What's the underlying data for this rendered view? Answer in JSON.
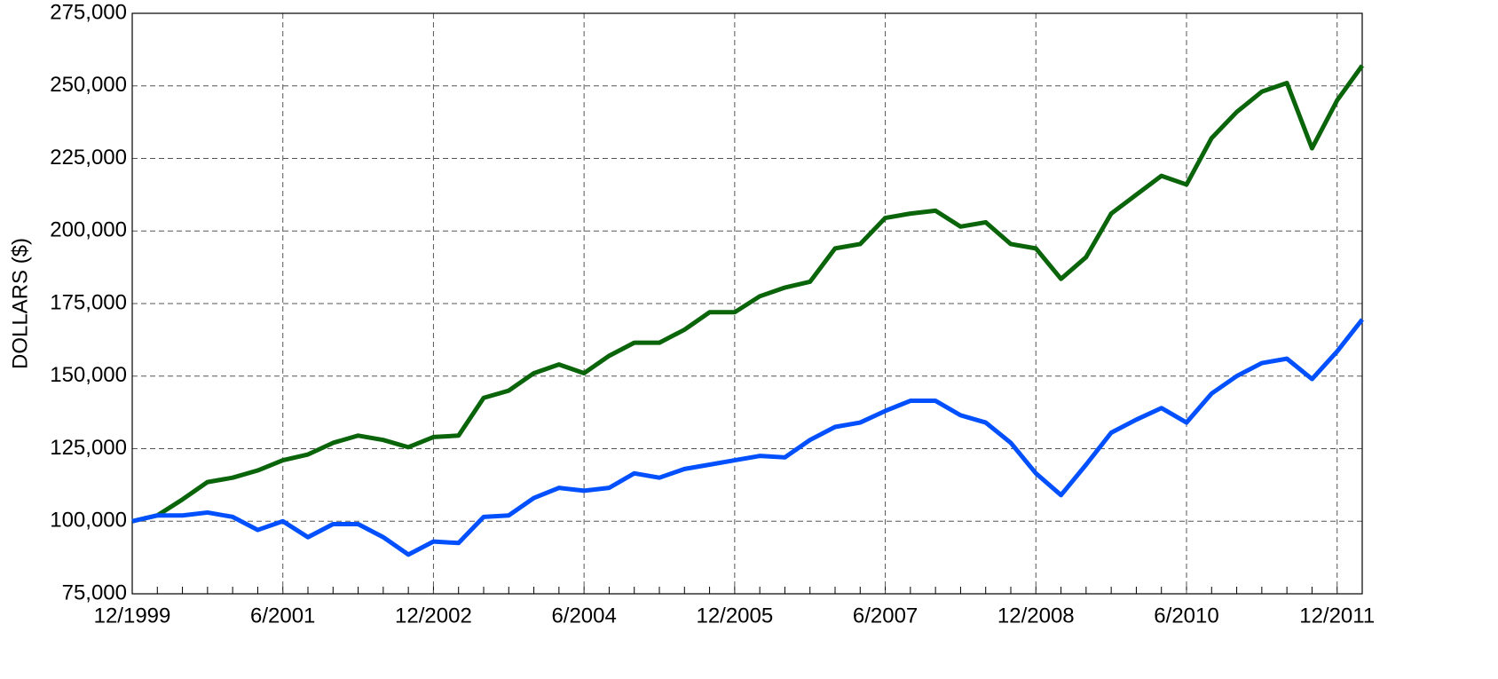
{
  "chart_data": {
    "type": "line",
    "ylabel": "DOLLARS ($)",
    "categories": [
      "12/1999",
      null,
      null,
      null,
      null,
      null,
      "6/2001",
      null,
      null,
      null,
      null,
      null,
      "12/2002",
      null,
      null,
      null,
      null,
      null,
      "6/2004",
      null,
      null,
      null,
      null,
      null,
      "12/2005",
      null,
      null,
      null,
      null,
      null,
      "6/2007",
      null,
      null,
      null,
      null,
      null,
      "12/2008",
      null,
      null,
      null,
      null,
      null,
      "6/2010",
      null,
      null,
      null,
      null,
      null,
      "12/2011",
      null
    ],
    "series": [
      {
        "color": "#0a640a",
        "values": [
          100000,
          102000,
          107500,
          113500,
          115000,
          117500,
          121000,
          123000,
          127000,
          129500,
          128000,
          125500,
          129000,
          129500,
          142500,
          145000,
          151000,
          154000,
          151000,
          157000,
          161500,
          161500,
          166000,
          172000,
          172000,
          177500,
          180500,
          182500,
          194000,
          195500,
          204500,
          206000,
          207000,
          201500,
          203000,
          195500,
          194000,
          183500,
          191000,
          206000,
          212500,
          219000,
          216000,
          232000,
          241000,
          248000,
          251000,
          228500,
          245000,
          257000
        ]
      },
      {
        "color": "#0050ff",
        "values": [
          100000,
          102000,
          102000,
          103000,
          101500,
          97000,
          100000,
          94500,
          99000,
          99000,
          94500,
          88500,
          93000,
          92500,
          101500,
          102000,
          108000,
          111500,
          110500,
          111500,
          116500,
          115000,
          118000,
          119500,
          121000,
          122500,
          122000,
          128000,
          132500,
          134000,
          138000,
          141500,
          141500,
          136500,
          134000,
          127000,
          116500,
          109000,
          119500,
          130500,
          135000,
          139000,
          134000,
          144000,
          150000,
          154500,
          156000,
          149000,
          158500,
          169500
        ]
      }
    ],
    "ylim": [
      75000,
      275000
    ],
    "yticks": [
      {
        "value": 75000,
        "label": "75,000"
      },
      {
        "value": 100000,
        "label": "100,000"
      },
      {
        "value": 125000,
        "label": "125,000"
      },
      {
        "value": 150000,
        "label": "150,000"
      },
      {
        "value": 175000,
        "label": "175,000"
      },
      {
        "value": 200000,
        "label": "200,000"
      },
      {
        "value": 225000,
        "label": "225,000"
      },
      {
        "value": 250000,
        "label": "250,000"
      },
      {
        "value": 275000,
        "label": "275,000"
      }
    ],
    "grid": true
  }
}
